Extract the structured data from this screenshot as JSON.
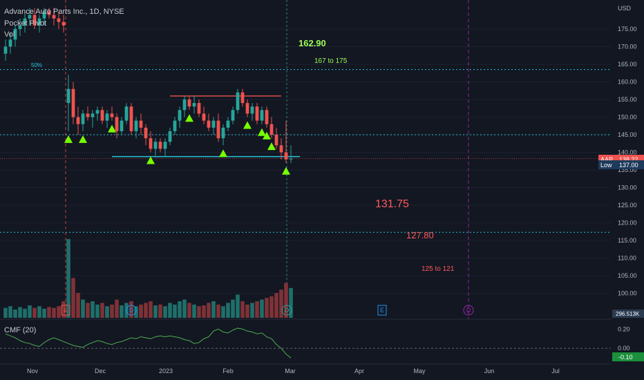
{
  "header": {
    "symbol_title": "Advance Auto Parts Inc., 1D, NYSE",
    "indicator": "Pocket Pivot",
    "volume_tag": "Vol"
  },
  "price_axis": {
    "currency": "USD",
    "ticks": [
      "175.00",
      "170.00",
      "165.00",
      "160.00",
      "155.00",
      "150.00",
      "145.00",
      "140.00",
      "135.00",
      "130.00",
      "125.00",
      "120.00",
      "115.00",
      "110.00",
      "105.00",
      "100.00"
    ],
    "last_badge": "138.22",
    "last_badge_tag": "AAP",
    "low_badge_label": "Low",
    "low_badge_value": "137.00",
    "volume_badge": "296.513K"
  },
  "cmf_axis": {
    "ticks": [
      "0.20",
      "0.00"
    ],
    "value_badge": "-0.10"
  },
  "cmf_legend": "CMF (20)",
  "time_axis": [
    "Nov",
    "Dec",
    "2023",
    "Feb",
    "Mar",
    "Apr",
    "May",
    "Jun",
    "Jul"
  ],
  "annotations": {
    "target_high": "162.90",
    "range_high": "167 to 175",
    "fib_label": "50%",
    "target_low1": "131.75",
    "target_low2": "127.80",
    "range_low": "125 to 121"
  },
  "events": [
    "E",
    "D",
    "D",
    "E",
    "D",
    "E"
  ],
  "colors": {
    "background": "#131722",
    "up": "#26a69a",
    "down": "#ef5350",
    "vol_up": "#1f6f6a",
    "vol_down": "#7f3237",
    "cmf_line": "#4caf50",
    "level_line": "#26c6da",
    "resistance": "#ef5350",
    "arrow": "#76ff03",
    "green_text": "#9cff57",
    "red_text": "#ff5a5a",
    "dashed_purple": "#9c27b0"
  },
  "chart_data": {
    "type": "candlestick",
    "title": "Advance Auto Parts Inc., 1D, NYSE",
    "y_range": [
      97,
      181
    ],
    "levels": {
      "dotted_upper": 163.5,
      "dotted_mid": 145,
      "dotted_lower": 117.3,
      "support": 138.8,
      "resistance": 156,
      "last": 138.22
    },
    "trend_segment": {
      "value": 138.8,
      "start_index": 22,
      "end_index": 58
    },
    "resistance_segment": {
      "value": 156,
      "start_index": 34,
      "end_index": 57
    },
    "candles": [
      [
        168,
        172,
        166,
        170
      ],
      [
        170,
        174,
        168,
        172
      ],
      [
        172,
        176,
        170,
        175
      ],
      [
        175,
        178,
        173,
        176
      ],
      [
        176,
        180,
        174,
        178
      ],
      [
        178,
        181,
        176,
        179
      ],
      [
        179,
        181,
        175,
        176
      ],
      [
        176,
        179,
        174,
        178
      ],
      [
        178,
        181,
        176,
        180
      ],
      [
        180,
        181,
        178,
        179
      ],
      [
        179,
        181,
        176,
        178
      ],
      [
        178,
        180,
        175,
        177
      ],
      [
        177,
        179,
        174,
        176
      ],
      [
        154,
        162,
        146,
        158
      ],
      [
        158,
        160,
        148,
        150
      ],
      [
        150,
        153,
        145,
        148
      ],
      [
        148,
        152,
        146,
        151
      ],
      [
        151,
        153,
        149,
        150
      ],
      [
        150,
        152,
        147,
        151
      ],
      [
        151,
        153,
        149,
        152
      ],
      [
        152,
        153,
        148,
        149
      ],
      [
        149,
        152,
        147,
        151
      ],
      [
        151,
        153,
        149,
        150
      ],
      [
        150,
        151,
        144,
        146
      ],
      [
        146,
        150,
        145,
        149
      ],
      [
        149,
        154,
        148,
        153
      ],
      [
        153,
        154,
        145,
        146
      ],
      [
        146,
        150,
        144,
        149
      ],
      [
        149,
        151,
        145,
        147
      ],
      [
        147,
        148,
        142,
        144
      ],
      [
        144,
        146,
        140,
        141
      ],
      [
        141,
        144,
        139,
        143
      ],
      [
        143,
        144,
        140,
        141
      ],
      [
        141,
        144,
        139,
        143
      ],
      [
        143,
        147,
        142,
        146
      ],
      [
        146,
        150,
        145,
        149
      ],
      [
        149,
        153,
        147,
        152
      ],
      [
        152,
        156,
        150,
        155
      ],
      [
        155,
        156,
        152,
        153
      ],
      [
        153,
        156,
        151,
        154
      ],
      [
        154,
        155,
        150,
        151
      ],
      [
        151,
        153,
        148,
        149
      ],
      [
        149,
        151,
        146,
        147
      ],
      [
        147,
        150,
        145,
        149
      ],
      [
        149,
        151,
        143,
        144
      ],
      [
        144,
        148,
        142,
        147
      ],
      [
        147,
        150,
        146,
        149
      ],
      [
        149,
        153,
        148,
        152
      ],
      [
        152,
        158,
        151,
        157
      ],
      [
        157,
        158,
        153,
        154
      ],
      [
        154,
        155,
        150,
        151
      ],
      [
        151,
        154,
        149,
        153
      ],
      [
        153,
        154,
        148,
        149
      ],
      [
        149,
        153,
        148,
        152
      ],
      [
        152,
        153,
        147,
        148
      ],
      [
        148,
        150,
        144,
        145
      ],
      [
        145,
        147,
        141,
        142
      ],
      [
        142,
        144,
        138,
        140
      ],
      [
        140,
        149,
        137,
        138
      ],
      [
        138,
        142,
        137,
        138.22
      ]
    ],
    "volume": [
      12,
      14,
      10,
      13,
      11,
      15,
      12,
      14,
      11,
      13,
      12,
      14,
      20,
      95,
      48,
      30,
      22,
      18,
      20,
      16,
      18,
      14,
      16,
      22,
      15,
      18,
      20,
      14,
      16,
      18,
      20,
      15,
      16,
      14,
      18,
      16,
      20,
      22,
      18,
      16,
      14,
      15,
      18,
      20,
      16,
      14,
      18,
      22,
      28,
      20,
      16,
      18,
      20,
      22,
      24,
      26,
      30,
      34,
      42,
      36
    ],
    "cmf": [
      0.15,
      0.13,
      0.11,
      0.08,
      0.06,
      0.05,
      0.03,
      0.02,
      0.06,
      0.09,
      0.11,
      0.09,
      0.07,
      0.05,
      0.03,
      0.02,
      0.01,
      0.04,
      0.06,
      0.08,
      0.07,
      0.05,
      0.04,
      0.06,
      0.07,
      0.09,
      0.11,
      0.1,
      0.12,
      0.11,
      0.1,
      0.12,
      0.13,
      0.12,
      0.13,
      0.12,
      0.11,
      0.09,
      0.08,
      0.05,
      0.06,
      0.1,
      0.12,
      0.18,
      0.2,
      0.17,
      0.16,
      0.19,
      0.21,
      0.2,
      0.18,
      0.17,
      0.15,
      0.16,
      0.12,
      0.1,
      0.04,
      0.0,
      -0.06,
      -0.1
    ],
    "cmf_range": [
      -0.15,
      0.26
    ],
    "signal_arrows": [
      13,
      16,
      22,
      30,
      38,
      45,
      50,
      53,
      54,
      55,
      58
    ]
  }
}
